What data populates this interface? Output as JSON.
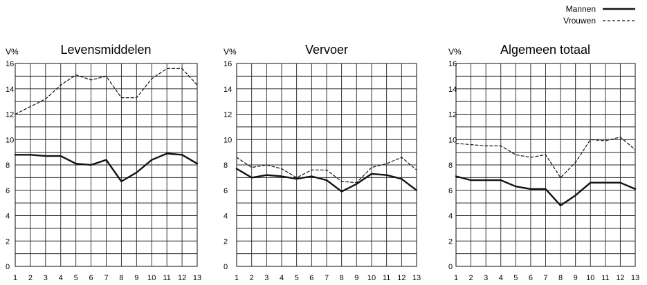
{
  "legend": {
    "items": [
      {
        "label": "Mannen",
        "style": "solid"
      },
      {
        "label": "Vrouwen",
        "style": "dashed"
      }
    ]
  },
  "colors": {
    "line": "#111111",
    "grid": "#222222",
    "background": "#ffffff"
  },
  "chart_data": [
    {
      "type": "line",
      "title": "Levensmiddelen",
      "ylabel": "V%",
      "xlabel": "",
      "x": [
        1,
        2,
        3,
        4,
        5,
        6,
        7,
        8,
        9,
        10,
        11,
        12,
        13
      ],
      "ylim": [
        0,
        16
      ],
      "yticks": [
        0,
        2,
        4,
        6,
        8,
        10,
        12,
        14,
        16
      ],
      "grid": true,
      "series": [
        {
          "name": "Mannen",
          "values": [
            8.8,
            8.8,
            8.7,
            8.7,
            8.1,
            8.0,
            8.4,
            6.7,
            7.4,
            8.4,
            8.9,
            8.8,
            8.1
          ]
        },
        {
          "name": "Vrouwen",
          "values": [
            12.0,
            12.6,
            13.2,
            14.3,
            15.1,
            14.7,
            15.0,
            13.3,
            13.3,
            14.8,
            15.6,
            15.6,
            14.3
          ]
        }
      ]
    },
    {
      "type": "line",
      "title": "Vervoer",
      "ylabel": "V%",
      "xlabel": "",
      "x": [
        1,
        2,
        3,
        4,
        5,
        6,
        7,
        8,
        9,
        10,
        11,
        12,
        13
      ],
      "ylim": [
        0,
        16
      ],
      "yticks": [
        0,
        2,
        4,
        6,
        8,
        10,
        12,
        14,
        16
      ],
      "grid": true,
      "series": [
        {
          "name": "Mannen",
          "values": [
            7.7,
            7.0,
            7.2,
            7.1,
            6.9,
            7.1,
            6.8,
            5.9,
            6.5,
            7.3,
            7.2,
            6.9,
            6.0
          ]
        },
        {
          "name": "Vrouwen",
          "values": [
            8.6,
            7.8,
            8.0,
            7.7,
            7.0,
            7.6,
            7.6,
            6.7,
            6.6,
            7.8,
            8.1,
            8.6,
            7.6
          ]
        }
      ]
    },
    {
      "type": "line",
      "title": "Algemeen totaal",
      "ylabel": "V%",
      "xlabel": "",
      "x": [
        1,
        2,
        3,
        4,
        5,
        6,
        7,
        8,
        9,
        10,
        11,
        12,
        13
      ],
      "ylim": [
        0,
        16
      ],
      "yticks": [
        0,
        2,
        4,
        6,
        8,
        10,
        12,
        14,
        16
      ],
      "grid": true,
      "series": [
        {
          "name": "Mannen",
          "values": [
            7.1,
            6.8,
            6.8,
            6.8,
            6.3,
            6.1,
            6.1,
            4.8,
            5.6,
            6.6,
            6.6,
            6.6,
            6.1
          ]
        },
        {
          "name": "Vrouwen",
          "values": [
            9.7,
            9.6,
            9.5,
            9.5,
            8.8,
            8.6,
            8.8,
            7.0,
            8.2,
            10.0,
            9.9,
            10.2,
            9.2
          ]
        }
      ]
    }
  ]
}
